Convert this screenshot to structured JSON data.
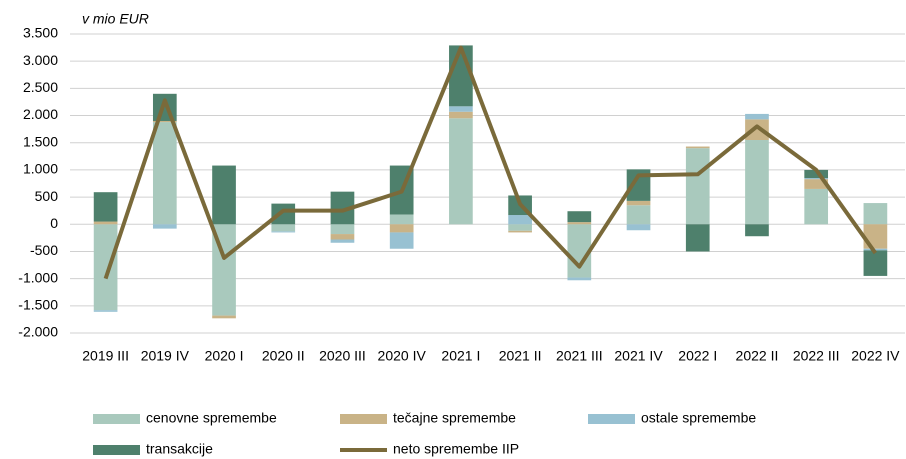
{
  "chart_data": {
    "type": "bar",
    "y_label": "v mio EUR",
    "categories": [
      "2019 III",
      "2019 IV",
      "2020 I",
      "2020 II",
      "2020 III",
      "2020 IV",
      "2021 I",
      "2021 II",
      "2021 III",
      "2021 IV",
      "2022 I",
      "2022 II",
      "2022 III",
      "2022 IV"
    ],
    "series": [
      {
        "name": "cenovne spremembe",
        "color": "#a9c9bd",
        "values": [
          -1580,
          1880,
          -1680,
          -130,
          -180,
          180,
          1950,
          -120,
          -980,
          350,
          1400,
          1550,
          650,
          390
        ]
      },
      {
        "name": "tečajne spremembe",
        "color": "#c9b387",
        "values": [
          50,
          20,
          -50,
          0,
          -100,
          -150,
          120,
          -30,
          40,
          80,
          30,
          380,
          180,
          -450
        ]
      },
      {
        "name": "ostale spremembe",
        "color": "#98c1d2",
        "values": [
          -30,
          -80,
          0,
          -20,
          -60,
          -300,
          100,
          170,
          -50,
          -110,
          0,
          100,
          20,
          -30
        ]
      },
      {
        "name": "transakcije",
        "color": "#4e806c",
        "values": [
          540,
          500,
          1080,
          380,
          600,
          900,
          1120,
          360,
          200,
          580,
          -500,
          -220,
          150,
          -470
        ]
      },
      {
        "name": "neto spremembe IIP",
        "color": "#7a6a3a",
        "type": "line",
        "values": [
          -1000,
          2280,
          -620,
          250,
          250,
          600,
          3250,
          370,
          -780,
          900,
          920,
          1800,
          1000,
          -530
        ]
      }
    ],
    "ylim": [
      -2000,
      3500
    ],
    "yticks": [
      {
        "value": -2000,
        "label": "-2.000"
      },
      {
        "value": -1500,
        "label": "-1.500"
      },
      {
        "value": -1000,
        "label": "-1.000"
      },
      -500,
      0,
      500,
      {
        "value": 1000,
        "label": "1.000"
      },
      {
        "value": 1500,
        "label": "1.500"
      },
      {
        "value": 2000,
        "label": "2.000"
      },
      {
        "value": 2500,
        "label": "2.500"
      },
      {
        "value": 3000,
        "label": "3.000"
      },
      {
        "value": 3500,
        "label": "3.500"
      }
    ],
    "grid": true
  }
}
